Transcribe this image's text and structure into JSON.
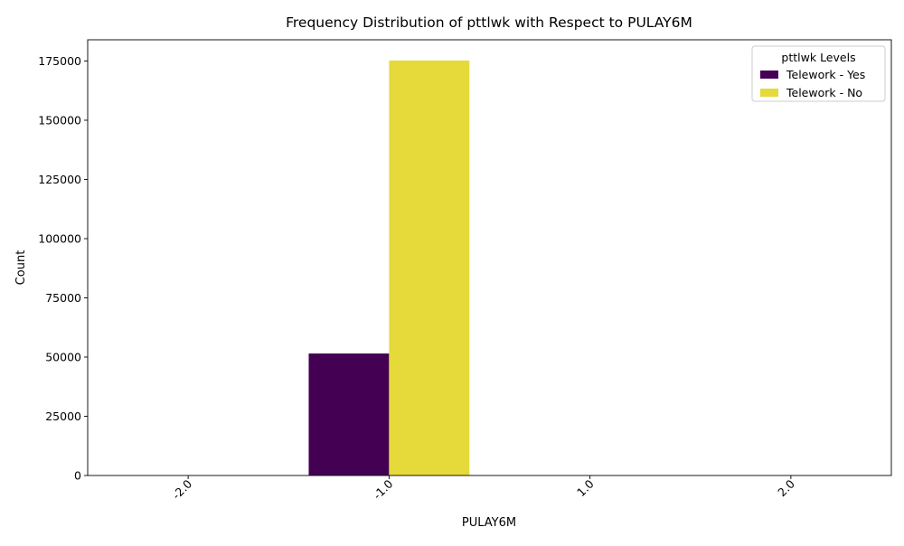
{
  "chart_data": {
    "type": "bar",
    "title": "Frequency Distribution of pttlwk with Respect to PULAY6M",
    "xlabel": "PULAY6M",
    "ylabel": "Count",
    "categories": [
      "-2.0",
      "-1.0",
      "1.0",
      "2.0"
    ],
    "series": [
      {
        "name": "Telework - Yes",
        "color": "#440154",
        "values": [
          0,
          51500,
          0,
          0
        ]
      },
      {
        "name": "Telework - No",
        "color": "#e6d93a",
        "values": [
          0,
          175200,
          0,
          0
        ]
      }
    ],
    "ylim": [
      0,
      183960
    ],
    "yticks": [
      0,
      25000,
      50000,
      75000,
      100000,
      125000,
      150000,
      175000
    ],
    "grid": false,
    "legend": {
      "title": "pttlwk Levels",
      "position": "top-right"
    },
    "xtick_rotation": 45
  }
}
